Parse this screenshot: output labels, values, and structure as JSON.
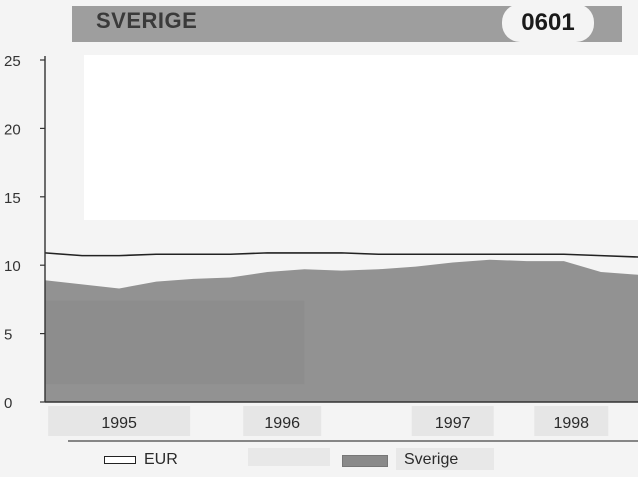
{
  "header": {
    "title": "SVERIGE",
    "code": "0601"
  },
  "legend": {
    "line_label": "EUR",
    "area_label": "Sverige"
  },
  "colors": {
    "line": "#222222",
    "area": "#929292",
    "area_dark": "#8a8a8a",
    "axis": "#333333"
  },
  "chart_data": {
    "type": "area",
    "title": "SVERIGE",
    "xlabel": "",
    "ylabel": "",
    "ylim": [
      0,
      25
    ],
    "yticks": [
      0,
      5,
      10,
      15,
      20,
      25
    ],
    "xticks": [
      "1995",
      "1996",
      "1997",
      "1998"
    ],
    "x": [
      1994.5,
      1994.75,
      1995.0,
      1995.25,
      1995.5,
      1995.75,
      1996.0,
      1996.25,
      1996.5,
      1996.75,
      1997.0,
      1997.25,
      1997.5,
      1997.75,
      1998.0,
      1998.25,
      1998.5
    ],
    "series": [
      {
        "name": "EUR",
        "kind": "line",
        "values": [
          10.9,
          10.7,
          10.7,
          10.8,
          10.8,
          10.8,
          10.9,
          10.9,
          10.9,
          10.8,
          10.8,
          10.8,
          10.8,
          10.8,
          10.8,
          10.7,
          10.6
        ]
      },
      {
        "name": "Sverige",
        "kind": "area",
        "values": [
          8.9,
          8.6,
          8.3,
          8.8,
          9.0,
          9.1,
          9.5,
          9.7,
          9.6,
          9.7,
          9.9,
          10.2,
          10.4,
          10.3,
          10.3,
          9.5,
          9.3
        ]
      }
    ]
  }
}
